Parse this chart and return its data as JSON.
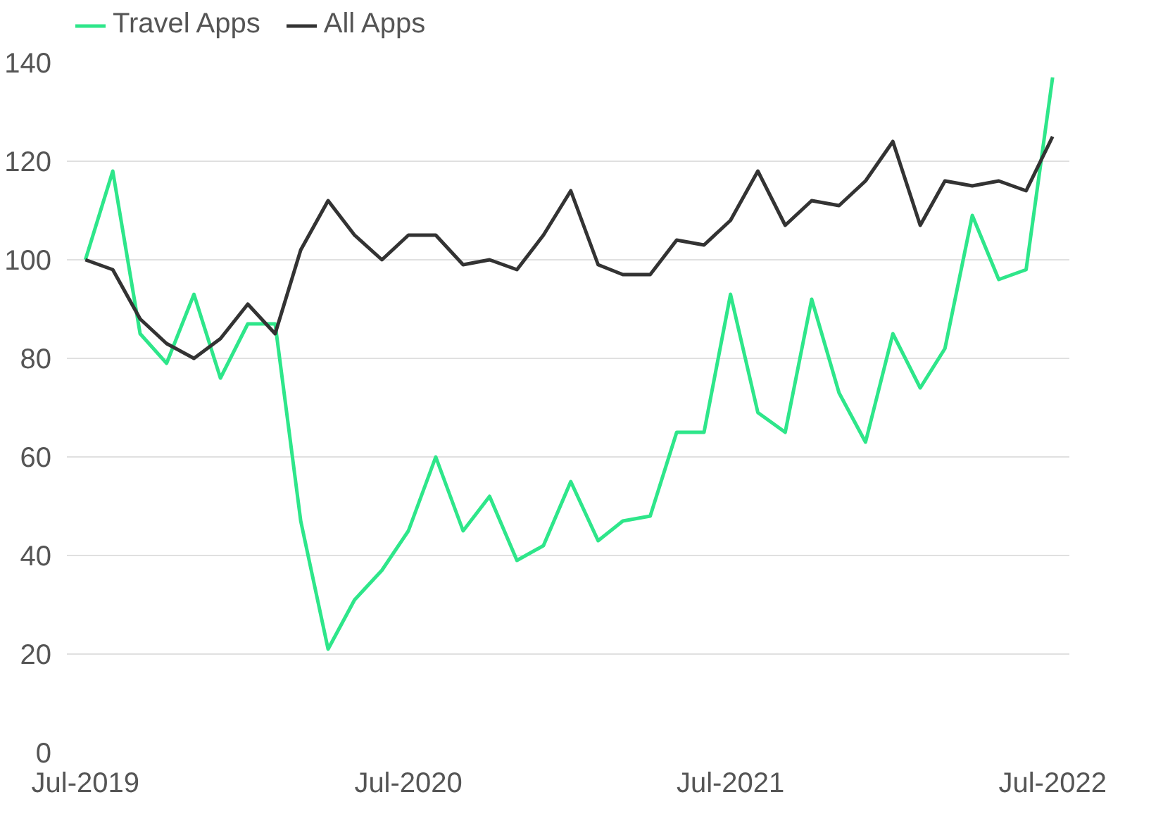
{
  "chart_data": {
    "type": "line",
    "x": [
      "2019-07",
      "2019-08",
      "2019-09",
      "2019-10",
      "2019-11",
      "2019-12",
      "2020-01",
      "2020-02",
      "2020-03",
      "2020-04",
      "2020-05",
      "2020-06",
      "2020-07",
      "2020-08",
      "2020-09",
      "2020-10",
      "2020-11",
      "2020-12",
      "2021-01",
      "2021-02",
      "2021-03",
      "2021-04",
      "2021-05",
      "2021-06",
      "2021-07",
      "2021-08",
      "2021-09",
      "2021-10",
      "2021-11",
      "2021-12",
      "2022-01",
      "2022-02",
      "2022-03",
      "2022-04",
      "2022-05",
      "2022-06",
      "2022-07"
    ],
    "series": [
      {
        "name": "Travel Apps",
        "color": "#2ee68a",
        "values": [
          100,
          118,
          85,
          79,
          93,
          76,
          87,
          87,
          47,
          21,
          31,
          37,
          45,
          60,
          45,
          52,
          39,
          42,
          55,
          43,
          47,
          48,
          65,
          65,
          93,
          69,
          65,
          92,
          73,
          63,
          85,
          74,
          82,
          109,
          96,
          98,
          137
        ]
      },
      {
        "name": "All Apps",
        "color": "#333333",
        "values": [
          100,
          98,
          88,
          83,
          80,
          84,
          91,
          85,
          102,
          112,
          105,
          100,
          105,
          105,
          99,
          100,
          98,
          105,
          114,
          99,
          97,
          97,
          104,
          103,
          108,
          118,
          107,
          112,
          111,
          116,
          124,
          107,
          116,
          115,
          116,
          114,
          125
        ]
      }
    ],
    "xlim": [
      "2019-06-10",
      "2022-07-20"
    ],
    "xticks": [
      {
        "value": "2019-07",
        "label": "Jul-2019"
      },
      {
        "value": "2020-07",
        "label": "Jul-2020"
      },
      {
        "value": "2021-07",
        "label": "Jul-2021"
      },
      {
        "value": "2022-07",
        "label": "Jul-2022"
      }
    ],
    "ylim": [
      0,
      140
    ],
    "yticks": [
      0,
      20,
      40,
      60,
      80,
      100,
      120,
      140
    ],
    "grid": "y",
    "legend": "top left",
    "marker": "none",
    "line_style": "solid"
  }
}
